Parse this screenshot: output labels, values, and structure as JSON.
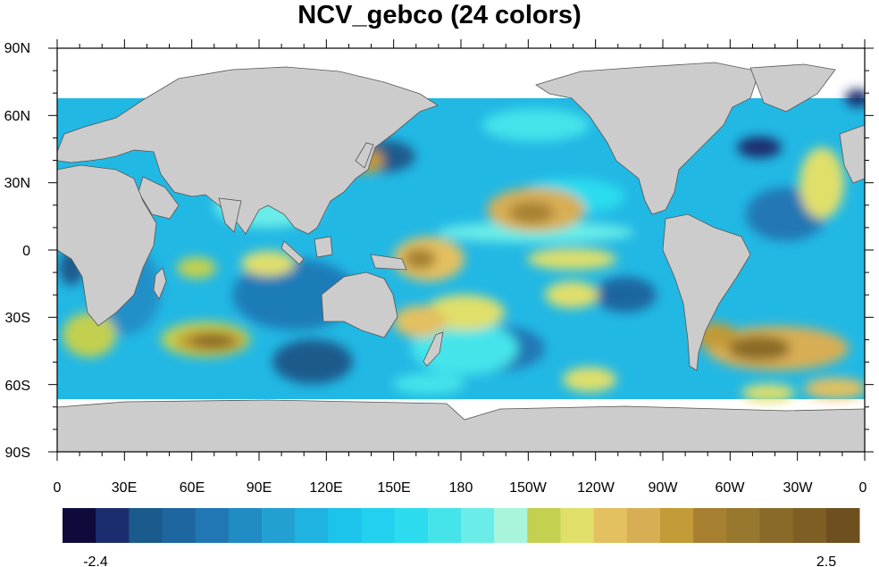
{
  "title": "NCV_gebco (24 colors)",
  "map": {
    "projection": "cylindrical equidistant",
    "center_longitude": 180,
    "land_color": "#cccccc",
    "missing_color": "#ffffff",
    "lat_ticks": [
      "90N",
      "60N",
      "30N",
      "0",
      "30S",
      "60S",
      "90S"
    ],
    "lon_ticks": [
      "0",
      "30E",
      "60E",
      "90E",
      "120E",
      "150E",
      "180",
      "150W",
      "120W",
      "90W",
      "60W",
      "30W",
      "0"
    ]
  },
  "colorbar": {
    "min_label": "-2.4",
    "max_label": "2.5",
    "colors": [
      "#0f0a3c",
      "#1b2d6e",
      "#1b5a8c",
      "#1e66a0",
      "#2077b4",
      "#218bc4",
      "#22a0d2",
      "#1eb3e1",
      "#1cc3ea",
      "#21d1ef",
      "#2cdcee",
      "#45e4ea",
      "#6aede8",
      "#a8f5dc",
      "#c3d050",
      "#e0df6a",
      "#e3c060",
      "#d8ae54",
      "#c29a36",
      "#a68030",
      "#98782e",
      "#8a6a28",
      "#7f5e24",
      "#6e5020"
    ]
  }
}
